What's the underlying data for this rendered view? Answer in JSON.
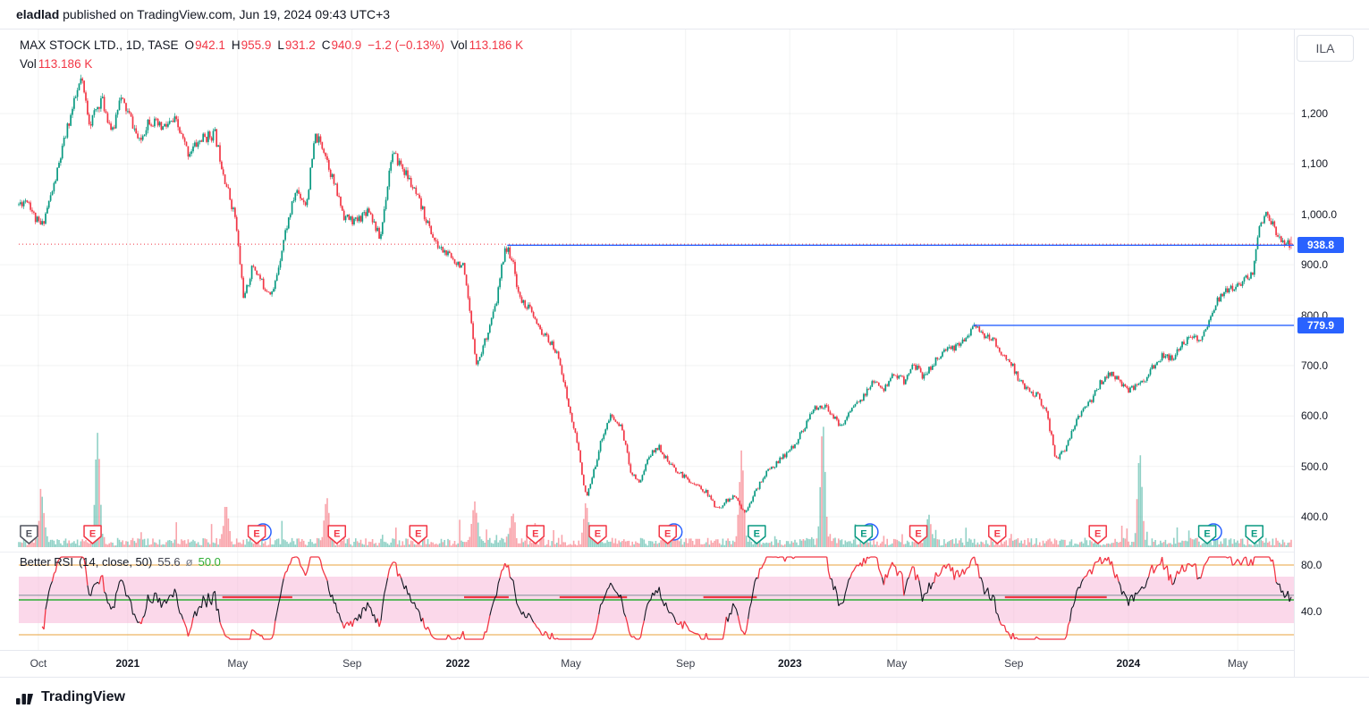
{
  "topbar": {
    "author": "eladlad",
    "text": " published on TradingView.com, Jun 19, 2024 09:43 UTC+3"
  },
  "symbol_badge": "ILA",
  "legend": {
    "title": "MAX STOCK LTD., 1D, TASE",
    "ohlc": [
      {
        "k": "O",
        "v": "942.1"
      },
      {
        "k": "H",
        "v": "955.9"
      },
      {
        "k": "L",
        "v": "931.2"
      },
      {
        "k": "C",
        "v": "940.9"
      }
    ],
    "change": "−1.2 (−0.13%)",
    "vol_label": "Vol",
    "vol_value": "113.186 K",
    "row2_label": "Vol",
    "row2_value": "113.186 K"
  },
  "rsi_legend": {
    "title": "Better RSI",
    "params": "(14, close, 50)",
    "value": "55.6",
    "avg_prefix": "ø",
    "avg_value": "50.0"
  },
  "footer": {
    "brand": "TradingView"
  },
  "chart_data": {
    "type": "candlestick",
    "symbol": "MAX STOCK LTD.",
    "interval": "1D",
    "exchange": "TASE",
    "last_candle": {
      "o": 942.1,
      "h": 955.9,
      "l": 931.2,
      "c": 940.9
    },
    "change": -1.2,
    "change_pct": -0.13,
    "volume_display": "113.186 K",
    "candles_count": 760,
    "seed": 11,
    "palette": {
      "up": "#089981",
      "down": "#f23645",
      "level_blue": "#2962ff",
      "rsi_line": "#131722",
      "rsi_green": "#2eae34",
      "rsi_gray": "#a0a3af",
      "rsi_orange": "#e8a33d",
      "band_pink": "#f7b8d9"
    },
    "price_axis_labels": [
      {
        "label": "1,200",
        "value": 1200
      },
      {
        "label": "1,100",
        "value": 1100
      },
      {
        "label": "1,000.0",
        "value": 1000
      },
      {
        "label": "900.0",
        "value": 900
      },
      {
        "label": "800.0",
        "value": 800
      },
      {
        "label": "700.0",
        "value": 700
      },
      {
        "label": "600.0",
        "value": 600
      },
      {
        "label": "500.0",
        "value": 500
      },
      {
        "label": "400.0",
        "value": 400
      }
    ],
    "time_axis_labels": [
      {
        "label": "Oct",
        "t": 0.0154,
        "year": false
      },
      {
        "label": "2021",
        "t": 0.0856,
        "year": true
      },
      {
        "label": "May",
        "t": 0.172,
        "year": false
      },
      {
        "label": "Sep",
        "t": 0.262,
        "year": false
      },
      {
        "label": "2022",
        "t": 0.345,
        "year": true
      },
      {
        "label": "May",
        "t": 0.434,
        "year": false
      },
      {
        "label": "Sep",
        "t": 0.524,
        "year": false
      },
      {
        "label": "2023",
        "t": 0.606,
        "year": true
      },
      {
        "label": "May",
        "t": 0.69,
        "year": false
      },
      {
        "label": "Sep",
        "t": 0.782,
        "year": false
      },
      {
        "label": "2024",
        "t": 0.872,
        "year": true
      },
      {
        "label": "May",
        "t": 0.958,
        "year": false
      }
    ],
    "levels": [
      {
        "label": "938.8",
        "price": 938.8,
        "start_t": 0.384
      },
      {
        "label": "779.9",
        "price": 779.9,
        "start_t": 0.75
      }
    ],
    "current_price_line": {
      "price": 940.9
    },
    "price_waypoints": [
      [
        0.0,
        1020
      ],
      [
        0.007,
        1032
      ],
      [
        0.013,
        990
      ],
      [
        0.018,
        976
      ],
      [
        0.028,
        1060
      ],
      [
        0.039,
        1180
      ],
      [
        0.049,
        1268
      ],
      [
        0.056,
        1180
      ],
      [
        0.065,
        1230
      ],
      [
        0.074,
        1160
      ],
      [
        0.079,
        1235
      ],
      [
        0.088,
        1190
      ],
      [
        0.095,
        1140
      ],
      [
        0.102,
        1190
      ],
      [
        0.112,
        1170
      ],
      [
        0.123,
        1185
      ],
      [
        0.133,
        1122
      ],
      [
        0.144,
        1150
      ],
      [
        0.154,
        1160
      ],
      [
        0.163,
        1060
      ],
      [
        0.17,
        995
      ],
      [
        0.177,
        830
      ],
      [
        0.184,
        900
      ],
      [
        0.193,
        855
      ],
      [
        0.2,
        845
      ],
      [
        0.209,
        960
      ],
      [
        0.218,
        1049
      ],
      [
        0.226,
        1020
      ],
      [
        0.233,
        1155
      ],
      [
        0.24,
        1130
      ],
      [
        0.247,
        1067
      ],
      [
        0.256,
        995
      ],
      [
        0.265,
        985
      ],
      [
        0.275,
        1013
      ],
      [
        0.284,
        950
      ],
      [
        0.293,
        1120
      ],
      [
        0.3,
        1100
      ],
      [
        0.307,
        1067
      ],
      [
        0.317,
        1010
      ],
      [
        0.328,
        940
      ],
      [
        0.34,
        913
      ],
      [
        0.349,
        898
      ],
      [
        0.353,
        830
      ],
      [
        0.36,
        700
      ],
      [
        0.368,
        762
      ],
      [
        0.375,
        820
      ],
      [
        0.382,
        935
      ],
      [
        0.387,
        918
      ],
      [
        0.394,
        830
      ],
      [
        0.401,
        815
      ],
      [
        0.408,
        776
      ],
      [
        0.418,
        745
      ],
      [
        0.425,
        713
      ],
      [
        0.432,
        620
      ],
      [
        0.439,
        545
      ],
      [
        0.446,
        435
      ],
      [
        0.451,
        480
      ],
      [
        0.458,
        555
      ],
      [
        0.465,
        600
      ],
      [
        0.474,
        576
      ],
      [
        0.481,
        490
      ],
      [
        0.488,
        468
      ],
      [
        0.495,
        520
      ],
      [
        0.503,
        540
      ],
      [
        0.511,
        505
      ],
      [
        0.519,
        487
      ],
      [
        0.53,
        467
      ],
      [
        0.54,
        450
      ],
      [
        0.549,
        415
      ],
      [
        0.556,
        432
      ],
      [
        0.563,
        440
      ],
      [
        0.57,
        408
      ],
      [
        0.579,
        450
      ],
      [
        0.587,
        487
      ],
      [
        0.595,
        505
      ],
      [
        0.602,
        522
      ],
      [
        0.609,
        540
      ],
      [
        0.617,
        576
      ],
      [
        0.625,
        613
      ],
      [
        0.632,
        622
      ],
      [
        0.639,
        604
      ],
      [
        0.646,
        576
      ],
      [
        0.654,
        615
      ],
      [
        0.663,
        633
      ],
      [
        0.671,
        668
      ],
      [
        0.679,
        650
      ],
      [
        0.688,
        686
      ],
      [
        0.696,
        668
      ],
      [
        0.703,
        705
      ],
      [
        0.71,
        680
      ],
      [
        0.717,
        696
      ],
      [
        0.724,
        722
      ],
      [
        0.732,
        732
      ],
      [
        0.739,
        742
      ],
      [
        0.745,
        760
      ],
      [
        0.751,
        778
      ],
      [
        0.758,
        758
      ],
      [
        0.766,
        750
      ],
      [
        0.773,
        722
      ],
      [
        0.78,
        704
      ],
      [
        0.787,
        667
      ],
      [
        0.794,
        650
      ],
      [
        0.801,
        640
      ],
      [
        0.808,
        604
      ],
      [
        0.815,
        515
      ],
      [
        0.822,
        532
      ],
      [
        0.829,
        576
      ],
      [
        0.836,
        613
      ],
      [
        0.843,
        631
      ],
      [
        0.85,
        667
      ],
      [
        0.858,
        686
      ],
      [
        0.865,
        670
      ],
      [
        0.872,
        650
      ],
      [
        0.879,
        662
      ],
      [
        0.886,
        676
      ],
      [
        0.893,
        704
      ],
      [
        0.9,
        722
      ],
      [
        0.907,
        712
      ],
      [
        0.914,
        740
      ],
      [
        0.921,
        758
      ],
      [
        0.928,
        750
      ],
      [
        0.935,
        785
      ],
      [
        0.942,
        831
      ],
      [
        0.949,
        849
      ],
      [
        0.956,
        858
      ],
      [
        0.963,
        867
      ],
      [
        0.97,
        885
      ],
      [
        0.975,
        976
      ],
      [
        0.98,
        1004
      ],
      [
        0.984,
        985
      ],
      [
        0.988,
        967
      ],
      [
        0.992,
        949
      ],
      [
        1.0,
        941
      ]
    ],
    "volume_spikes": [
      [
        0.018,
        55
      ],
      [
        0.062,
        120
      ],
      [
        0.163,
        40
      ],
      [
        0.242,
        50
      ],
      [
        0.358,
        45
      ],
      [
        0.388,
        35
      ],
      [
        0.446,
        42
      ],
      [
        0.568,
        100
      ],
      [
        0.632,
        130
      ],
      [
        0.715,
        30
      ],
      [
        0.881,
        95
      ]
    ],
    "earnings_markers": [
      {
        "t": 0.008,
        "color": "gray",
        "ring": false
      },
      {
        "t": 0.058,
        "color": "red",
        "ring": false
      },
      {
        "t": 0.187,
        "color": "red",
        "ring": true
      },
      {
        "t": 0.25,
        "color": "red",
        "ring": false
      },
      {
        "t": 0.314,
        "color": "red",
        "ring": false
      },
      {
        "t": 0.406,
        "color": "red",
        "ring": false
      },
      {
        "t": 0.455,
        "color": "red",
        "ring": false
      },
      {
        "t": 0.51,
        "color": "red",
        "ring": true
      },
      {
        "t": 0.58,
        "color": "green",
        "ring": false
      },
      {
        "t": 0.664,
        "color": "green",
        "ring": true
      },
      {
        "t": 0.707,
        "color": "red",
        "ring": false
      },
      {
        "t": 0.769,
        "color": "red",
        "ring": false
      },
      {
        "t": 0.848,
        "color": "red",
        "ring": false
      },
      {
        "t": 0.934,
        "color": "green",
        "ring": true
      },
      {
        "t": 0.971,
        "color": "green",
        "ring": false
      }
    ],
    "rsi": {
      "period": 14,
      "current": 55.6,
      "average": 50.0,
      "axis_labels": [
        {
          "label": "80.0",
          "value": 80
        },
        {
          "label": "40.0",
          "value": 40
        }
      ],
      "band": [
        30,
        70
      ],
      "upper_line": 80,
      "lower_line": 20,
      "mid_line": 50,
      "gray_line": 54,
      "red_mid_segments": [
        [
          0.16,
          0.215
        ],
        [
          0.35,
          0.385
        ],
        [
          0.425,
          0.478
        ],
        [
          0.538,
          0.58
        ],
        [
          0.775,
          0.855
        ]
      ]
    }
  }
}
